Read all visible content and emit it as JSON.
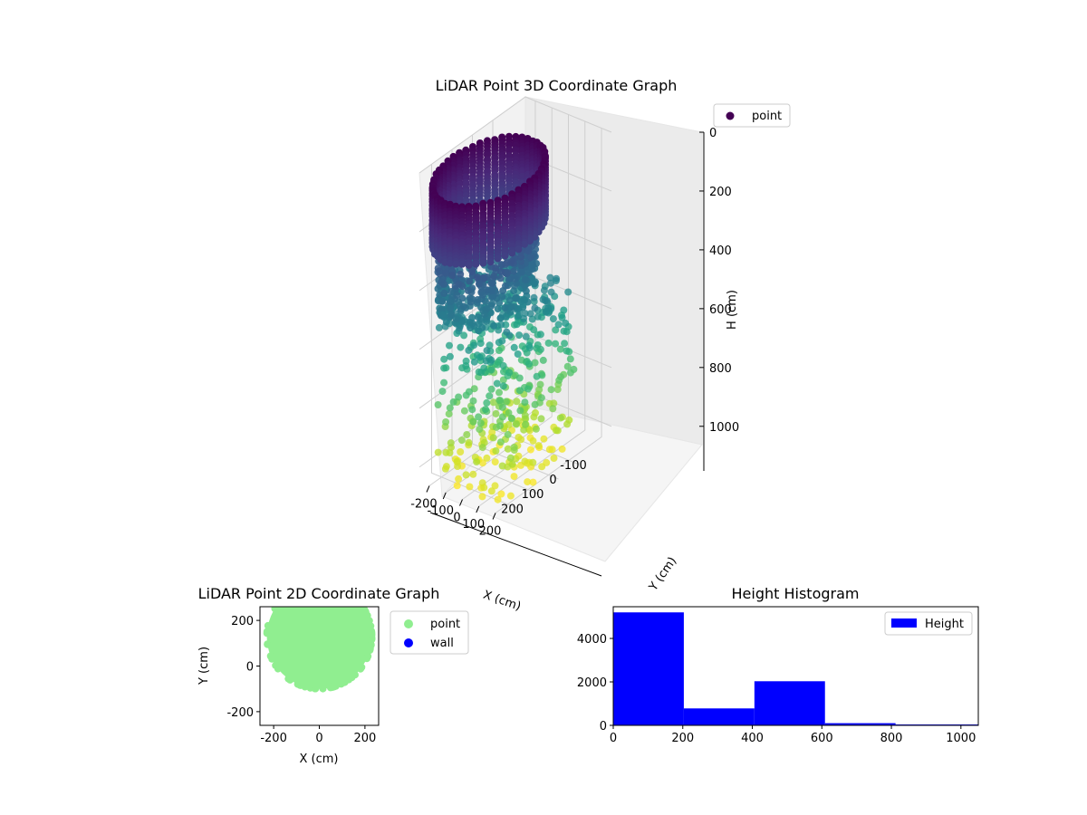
{
  "chart_data": [
    {
      "type": "scatter",
      "projection": "3d",
      "title": "LiDAR Point 3D Coordinate Graph",
      "xlabel": "X (cm)",
      "ylabel": "Y (cm)",
      "zlabel": "H (cm)",
      "xticks": [
        -200,
        -100,
        0,
        100,
        200
      ],
      "yticks": [
        -100,
        0,
        100,
        200
      ],
      "zticks": [
        0,
        200,
        400,
        600,
        800,
        1000
      ],
      "xlim": [
        -260,
        260
      ],
      "ylim": [
        -260,
        260
      ],
      "zlim": [
        0,
        1050
      ],
      "zinverted": true,
      "colormap": "viridis",
      "legend": {
        "entries": [
          "point"
        ],
        "location": "upper right",
        "marker_color": "#440154"
      },
      "series": [
        {
          "name": "point",
          "clusters": [
            {
              "label": "ring",
              "center_x": 0,
              "center_y": 130,
              "radius": 215,
              "h_range": [
                0,
                200
              ],
              "density": "dense"
            },
            {
              "label": "lower ring",
              "center_x": -50,
              "center_y": 100,
              "radius": 190,
              "h_range": [
                280,
                470
              ],
              "density": "medium"
            },
            {
              "label": "scatter",
              "x_range": [
                -200,
                220
              ],
              "y_range": [
                -150,
                260
              ],
              "h_range": [
                450,
                1050
              ],
              "density": "sparse"
            }
          ]
        }
      ]
    },
    {
      "type": "scatter",
      "title": "LiDAR Point 2D Coordinate Graph",
      "xlabel": "X (cm)",
      "ylabel": "Y (cm)",
      "xticks": [
        -200,
        0,
        200
      ],
      "yticks": [
        -200,
        0,
        200
      ],
      "xlim": [
        -260,
        260
      ],
      "ylim": [
        -260,
        260
      ],
      "legend": {
        "entries": [
          "point",
          "wall"
        ],
        "location": "outside right",
        "colors": [
          "#90ee90",
          "#0000ff"
        ]
      },
      "series": [
        {
          "name": "point",
          "color": "#90ee90",
          "shape": "disc",
          "center": [
            0,
            130
          ],
          "radius": 230
        },
        {
          "name": "wall",
          "color": "#0000ff",
          "points": []
        }
      ]
    },
    {
      "type": "bar",
      "title": "Height Histogram",
      "xlabel": "",
      "ylabel": "",
      "xticks": [
        0,
        200,
        400,
        600,
        800,
        1000
      ],
      "yticks": [
        0,
        2000,
        4000
      ],
      "xlim": [
        0,
        1050
      ],
      "ylim": [
        0,
        5460
      ],
      "legend": {
        "entries": [
          "Height"
        ],
        "location": "upper right",
        "color": "#0000ff"
      },
      "series": [
        {
          "name": "Height",
          "color": "#0000ff",
          "bin_edges": [
            0,
            203,
            406,
            609,
            812,
            1015,
            1050
          ],
          "counts": [
            5200,
            780,
            2030,
            100,
            40,
            40
          ]
        }
      ]
    }
  ]
}
